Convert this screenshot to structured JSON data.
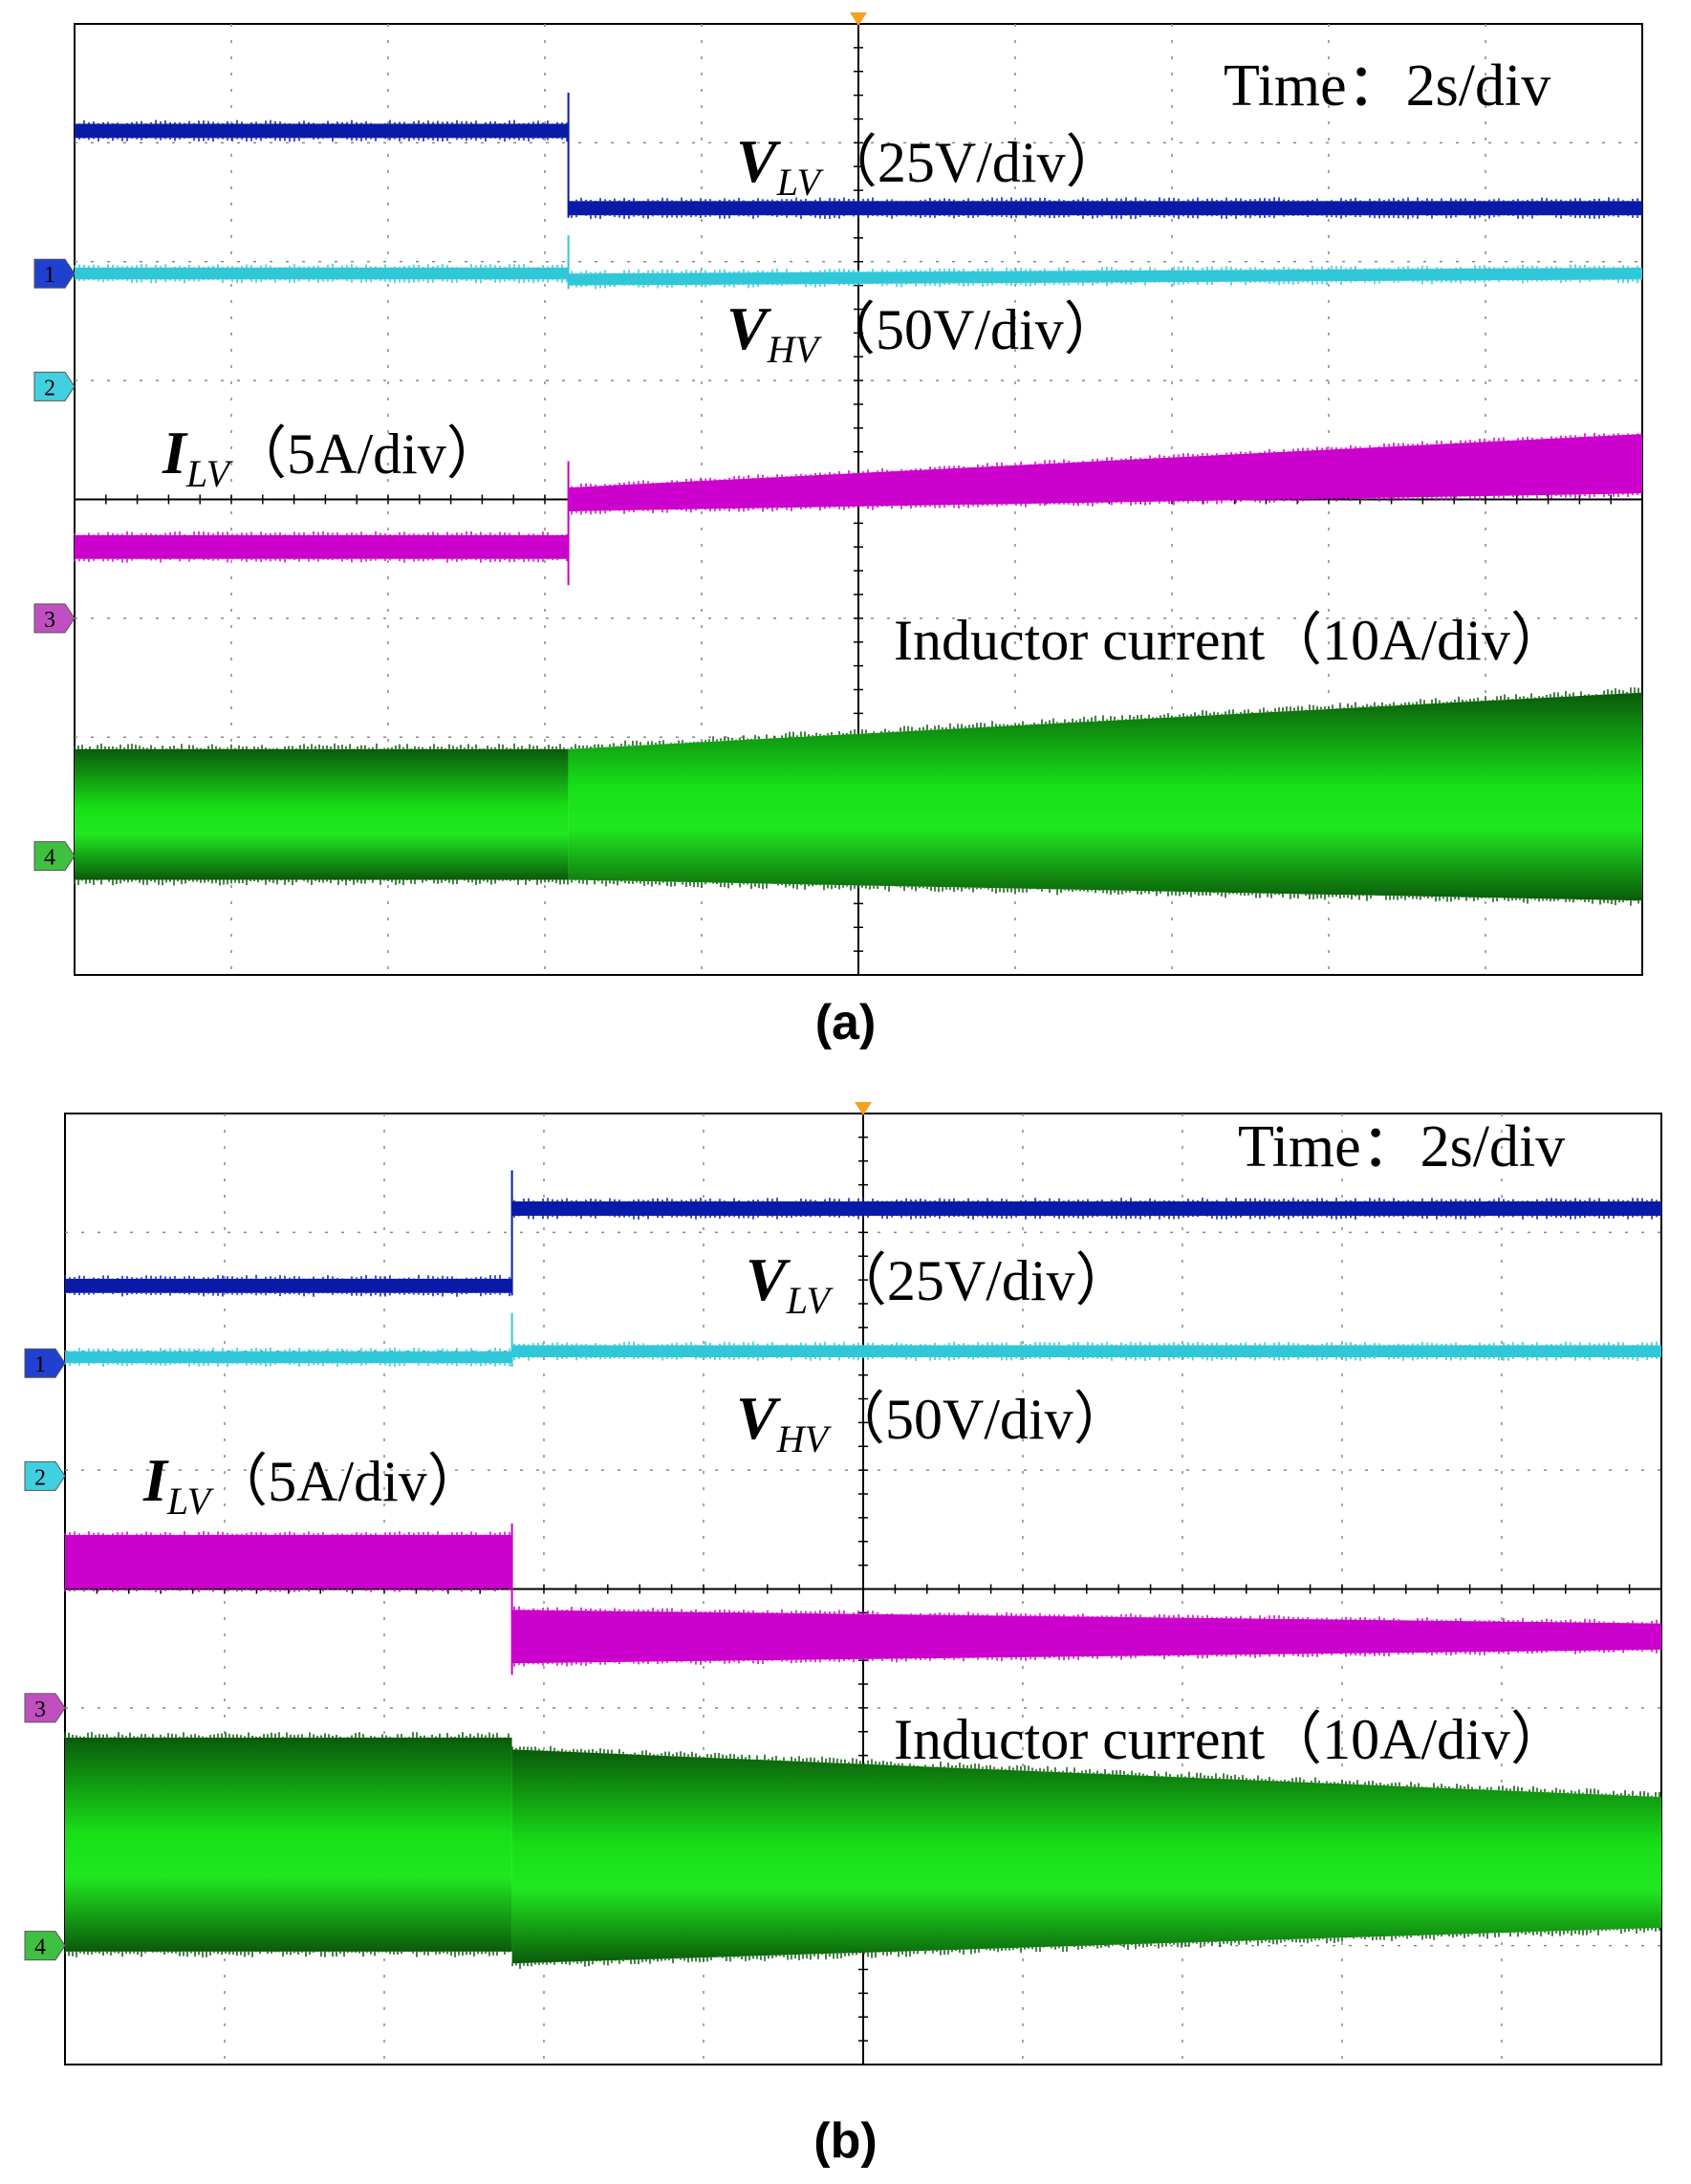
{
  "chart_data": [
    {
      "type": "line",
      "panel_label": "(a)",
      "time_label": "Time：2s/div",
      "grid": true,
      "divisions": {
        "x": 10,
        "y": 8
      },
      "step_division": 3.15,
      "channels": [
        {
          "id": "1",
          "name": "VLV",
          "sub": "LV",
          "scale_text": "（25V/div）",
          "color": "#0a1aa8",
          "band_div": 0.12,
          "before": {
            "level_div": 7.1
          },
          "after": {
            "level_start_div": 6.45,
            "level_end_div": 6.45
          }
        },
        {
          "id": "2",
          "name": "VHV",
          "sub": "HV",
          "scale_text": "（50V/div）",
          "color": "#30c8d8",
          "band_div": 0.1,
          "before": {
            "level_div": 5.9
          },
          "after": {
            "level_start_div": 5.85,
            "level_end_div": 5.9
          }
        },
        {
          "id": "3",
          "name": "ILV",
          "sub": "LV",
          "scale_text": "（5A/div）",
          "color": "#cc00cc",
          "band_div": 0.2,
          "before": {
            "level_div": 3.6
          },
          "after": {
            "level_start_div": 4.0,
            "level_end_div": 4.3
          },
          "after_band_end_div": 0.5
        },
        {
          "id": "4",
          "name": "Inductor current",
          "sub": "",
          "scale_text": "（10A/div）",
          "color": "#12b012",
          "band_div": 1.1,
          "before": {
            "level_div": 1.35
          },
          "after": {
            "level_start_div": 1.35,
            "level_end_div": 1.5
          },
          "after_band_end_div": 1.75
        }
      ]
    },
    {
      "type": "line",
      "panel_label": "(b)",
      "time_label": "Time：2s/div",
      "grid": true,
      "divisions": {
        "x": 10,
        "y": 8
      },
      "step_division": 2.8,
      "channels": [
        {
          "id": "1",
          "name": "VLV",
          "sub": "LV",
          "scale_text": "（25V/div）",
          "color": "#0a1aa8",
          "band_div": 0.12,
          "before": {
            "level_div": 6.55
          },
          "after": {
            "level_start_div": 7.2,
            "level_end_div": 7.2
          }
        },
        {
          "id": "2",
          "name": "VHV",
          "sub": "HV",
          "scale_text": "（50V/div）",
          "color": "#30c8d8",
          "band_div": 0.1,
          "before": {
            "level_div": 5.95
          },
          "after": {
            "level_start_div": 6.0,
            "level_end_div": 6.0
          }
        },
        {
          "id": "3",
          "name": "ILV",
          "sub": "LV",
          "scale_text": "（5A/div）",
          "color": "#cc00cc",
          "band_div": 0.45,
          "before": {
            "level_div": 4.23
          },
          "after": {
            "level_start_div": 3.6,
            "level_end_div": 3.6
          },
          "after_band_end_div": 0.22
        },
        {
          "id": "4",
          "name": "Inductor current",
          "sub": "",
          "scale_text": "（10A/div）",
          "color": "#12b012",
          "band_div": 1.8,
          "before": {
            "level_div": 1.85
          },
          "after": {
            "level_start_div": 1.75,
            "level_end_div": 1.7
          },
          "after_band_end_div": 1.1
        }
      ]
    }
  ]
}
